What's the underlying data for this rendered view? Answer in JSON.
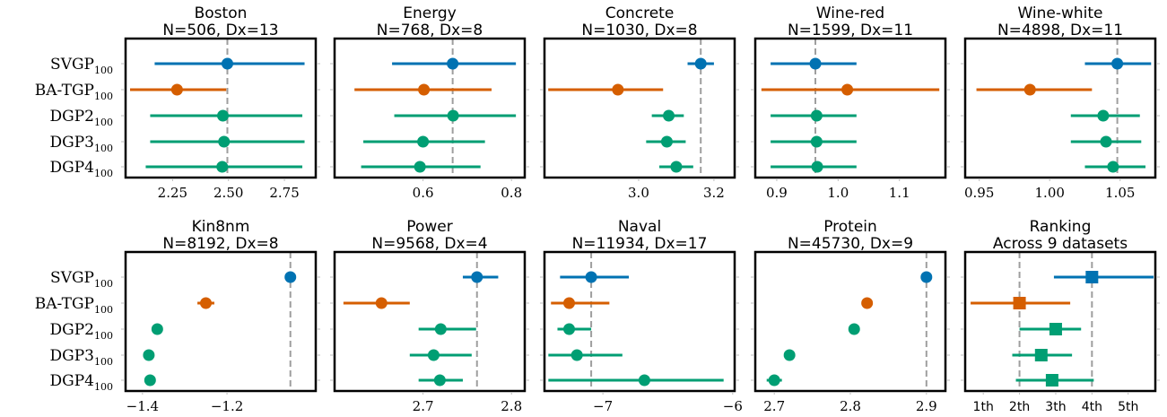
{
  "figure": {
    "colors": {
      "SVGP": "#0072b2",
      "BA-TGP": "#d55e00",
      "DGP": "#009e73",
      "refline": "#9e9e9e"
    },
    "y_labels": [
      {
        "main": "SVGP",
        "sub": "100"
      },
      {
        "main": "BA-TGP",
        "sub": "100"
      },
      {
        "main": "DGP2",
        "sub": "100"
      },
      {
        "main": "DGP3",
        "sub": "100"
      },
      {
        "main": "DGP4",
        "sub": "100"
      }
    ]
  },
  "chart_data": [
    {
      "type": "scatter",
      "title": "Boston",
      "subtitle": "N=506, Dx=13",
      "xlim": [
        2.04,
        2.89
      ],
      "xticks": [
        2.25,
        2.5,
        2.75
      ],
      "xticklabels": [
        "2.25",
        "2.50",
        "2.75"
      ],
      "refline": 2.495,
      "series": [
        {
          "name": "SVGP",
          "value": 2.495,
          "low": 2.17,
          "high": 2.84,
          "color": "#0072b2"
        },
        {
          "name": "BA-TGP",
          "value": 2.27,
          "low": 2.06,
          "high": 2.49,
          "color": "#d55e00"
        },
        {
          "name": "DGP2",
          "value": 2.475,
          "low": 2.15,
          "high": 2.83,
          "color": "#009e73"
        },
        {
          "name": "DGP3",
          "value": 2.48,
          "low": 2.15,
          "high": 2.84,
          "color": "#009e73"
        },
        {
          "name": "DGP4",
          "value": 2.472,
          "low": 2.13,
          "high": 2.83,
          "color": "#009e73"
        }
      ]
    },
    {
      "type": "scatter",
      "title": "Energy",
      "subtitle": "N=768, Dx=8",
      "xlim": [
        0.4,
        0.83
      ],
      "xticks": [
        0.6,
        0.8
      ],
      "xticklabels": [
        "0.6",
        "0.8"
      ],
      "refline": 0.667,
      "series": [
        {
          "name": "SVGP",
          "value": 0.667,
          "low": 0.53,
          "high": 0.81,
          "color": "#0072b2"
        },
        {
          "name": "BA-TGP",
          "value": 0.602,
          "low": 0.445,
          "high": 0.755,
          "color": "#d55e00"
        },
        {
          "name": "DGP2",
          "value": 0.668,
          "low": 0.535,
          "high": 0.81,
          "color": "#009e73"
        },
        {
          "name": "DGP3",
          "value": 0.6,
          "low": 0.465,
          "high": 0.74,
          "color": "#009e73"
        },
        {
          "name": "DGP4",
          "value": 0.593,
          "low": 0.46,
          "high": 0.73,
          "color": "#009e73"
        }
      ]
    },
    {
      "type": "scatter",
      "title": "Concrete",
      "subtitle": "N=1030, Dx=8",
      "xlim": [
        2.75,
        3.255
      ],
      "xticks": [
        3.0,
        3.2
      ],
      "xticklabels": [
        "3.0",
        "3.2"
      ],
      "refline": 3.165,
      "series": [
        {
          "name": "SVGP",
          "value": 3.165,
          "low": 3.13,
          "high": 3.2,
          "color": "#0072b2"
        },
        {
          "name": "BA-TGP",
          "value": 2.945,
          "low": 2.76,
          "high": 3.065,
          "color": "#d55e00"
        },
        {
          "name": "DGP2",
          "value": 3.08,
          "low": 3.035,
          "high": 3.12,
          "color": "#009e73"
        },
        {
          "name": "DGP3",
          "value": 3.075,
          "low": 3.02,
          "high": 3.125,
          "color": "#009e73"
        },
        {
          "name": "DGP4",
          "value": 3.1,
          "low": 3.055,
          "high": 3.145,
          "color": "#009e73"
        }
      ]
    },
    {
      "type": "scatter",
      "title": "Wine-red",
      "subtitle": "N=1599, Dx=11",
      "xlim": [
        0.865,
        1.175
      ],
      "xticks": [
        0.9,
        1.0,
        1.1
      ],
      "xticklabels": [
        "0.9",
        "1.0",
        "1.1"
      ],
      "refline": 0.963,
      "series": [
        {
          "name": "SVGP",
          "value": 0.963,
          "low": 0.89,
          "high": 1.03,
          "color": "#0072b2"
        },
        {
          "name": "BA-TGP",
          "value": 1.015,
          "low": 0.875,
          "high": 1.165,
          "color": "#d55e00"
        },
        {
          "name": "DGP2",
          "value": 0.965,
          "low": 0.89,
          "high": 1.03,
          "color": "#009e73"
        },
        {
          "name": "DGP3",
          "value": 0.965,
          "low": 0.89,
          "high": 1.03,
          "color": "#009e73"
        },
        {
          "name": "DGP4",
          "value": 0.966,
          "low": 0.89,
          "high": 1.03,
          "color": "#009e73"
        }
      ]
    },
    {
      "type": "scatter",
      "title": "Wine-white",
      "subtitle": "N=4898, Dx=11",
      "xlim": [
        0.94,
        1.075
      ],
      "xticks": [
        0.95,
        1.0,
        1.05
      ],
      "xticklabels": [
        "0.95",
        "1.00",
        "1.05"
      ],
      "refline": 1.048,
      "series": [
        {
          "name": "SVGP",
          "value": 1.048,
          "low": 1.025,
          "high": 1.072,
          "color": "#0072b2"
        },
        {
          "name": "BA-TGP",
          "value": 0.986,
          "low": 0.948,
          "high": 1.03,
          "color": "#d55e00"
        },
        {
          "name": "DGP2",
          "value": 1.038,
          "low": 1.015,
          "high": 1.064,
          "color": "#009e73"
        },
        {
          "name": "DGP3",
          "value": 1.04,
          "low": 1.015,
          "high": 1.065,
          "color": "#009e73"
        },
        {
          "name": "DGP4",
          "value": 1.045,
          "low": 1.025,
          "high": 1.068,
          "color": "#009e73"
        }
      ]
    },
    {
      "type": "scatter",
      "title": "Kin8nm",
      "subtitle": "N=8192, Dx=8",
      "xlim": [
        -1.44,
        -0.99
      ],
      "xticks": [
        -1.4,
        -1.2
      ],
      "xticklabels": [
        "−1.4",
        "−1.2"
      ],
      "refline": -1.05,
      "series": [
        {
          "name": "SVGP",
          "value": -1.05,
          "low": -1.06,
          "high": -1.04,
          "color": "#0072b2"
        },
        {
          "name": "BA-TGP",
          "value": -1.25,
          "low": -1.27,
          "high": -1.23,
          "color": "#d55e00"
        },
        {
          "name": "DGP2",
          "value": -1.365,
          "low": -1.375,
          "high": -1.355,
          "color": "#009e73"
        },
        {
          "name": "DGP3",
          "value": -1.385,
          "low": -1.395,
          "high": -1.375,
          "color": "#009e73"
        },
        {
          "name": "DGP4",
          "value": -1.382,
          "low": -1.395,
          "high": -1.37,
          "color": "#009e73"
        }
      ]
    },
    {
      "type": "scatter",
      "title": "Power",
      "subtitle": "N=9568, Dx=4",
      "xlim": [
        2.6,
        2.815
      ],
      "xticks": [
        2.7,
        2.8
      ],
      "xticklabels": [
        "2.7",
        "2.8"
      ],
      "refline": 2.761,
      "series": [
        {
          "name": "SVGP",
          "value": 2.761,
          "low": 2.745,
          "high": 2.785,
          "color": "#0072b2"
        },
        {
          "name": "BA-TGP",
          "value": 2.653,
          "low": 2.61,
          "high": 2.685,
          "color": "#d55e00"
        },
        {
          "name": "DGP2",
          "value": 2.72,
          "low": 2.695,
          "high": 2.76,
          "color": "#009e73"
        },
        {
          "name": "DGP3",
          "value": 2.712,
          "low": 2.685,
          "high": 2.755,
          "color": "#009e73"
        },
        {
          "name": "DGP4",
          "value": 2.719,
          "low": 2.695,
          "high": 2.745,
          "color": "#009e73"
        }
      ]
    },
    {
      "type": "scatter",
      "title": "Naval",
      "subtitle": "N=11934, Dx=17",
      "xlim": [
        -7.45,
        -5.985
      ],
      "xticks": [
        -7,
        -6
      ],
      "xticklabels": [
        "−7",
        "−6"
      ],
      "refline": -7.09,
      "series": [
        {
          "name": "SVGP",
          "value": -7.09,
          "low": -7.33,
          "high": -6.8,
          "color": "#0072b2"
        },
        {
          "name": "BA-TGP",
          "value": -7.26,
          "low": -7.4,
          "high": -6.95,
          "color": "#d55e00"
        },
        {
          "name": "DGP2",
          "value": -7.26,
          "low": -7.35,
          "high": -7.09,
          "color": "#009e73"
        },
        {
          "name": "DGP3",
          "value": -7.2,
          "low": -7.42,
          "high": -6.85,
          "color": "#009e73"
        },
        {
          "name": "DGP4",
          "value": -6.68,
          "low": -7.42,
          "high": -6.07,
          "color": "#009e73"
        }
      ]
    },
    {
      "type": "scatter",
      "title": "Protein",
      "subtitle": "N=45730, Dx=9",
      "xlim": [
        2.675,
        2.925
      ],
      "xticks": [
        2.7,
        2.8,
        2.9
      ],
      "xticklabels": [
        "2.7",
        "2.8",
        "2.9"
      ],
      "refline": 2.9,
      "series": [
        {
          "name": "SVGP",
          "value": 2.9,
          "low": 2.895,
          "high": 2.905,
          "color": "#0072b2"
        },
        {
          "name": "BA-TGP",
          "value": 2.822,
          "low": 2.818,
          "high": 2.826,
          "color": "#d55e00"
        },
        {
          "name": "DGP2",
          "value": 2.805,
          "low": 2.801,
          "high": 2.809,
          "color": "#009e73"
        },
        {
          "name": "DGP3",
          "value": 2.72,
          "low": 2.716,
          "high": 2.724,
          "color": "#009e73"
        },
        {
          "name": "DGP4",
          "value": 2.7,
          "low": 2.69,
          "high": 2.71,
          "color": "#009e73"
        }
      ]
    },
    {
      "type": "scatter",
      "title": "Ranking",
      "subtitle": "Across 9 datasets",
      "marker": "square",
      "xlim": [
        0.5,
        5.75
      ],
      "xticks": [
        1,
        2,
        3,
        4,
        5
      ],
      "xticklabels": [
        "1th",
        "2th",
        "3th",
        "4th",
        "5th"
      ],
      "reflines": [
        2.0,
        4.0
      ],
      "series": [
        {
          "name": "SVGP",
          "value": 4.0,
          "low": 2.95,
          "high": 5.7,
          "color": "#0072b2"
        },
        {
          "name": "BA-TGP",
          "value": 2.0,
          "low": 0.65,
          "high": 3.4,
          "color": "#d55e00"
        },
        {
          "name": "DGP2",
          "value": 3.0,
          "low": 2.0,
          "high": 3.7,
          "color": "#009e73"
        },
        {
          "name": "DGP3",
          "value": 2.6,
          "low": 1.8,
          "high": 3.45,
          "color": "#009e73"
        },
        {
          "name": "DGP4",
          "value": 2.9,
          "low": 1.9,
          "high": 4.05,
          "color": "#009e73"
        }
      ]
    }
  ]
}
